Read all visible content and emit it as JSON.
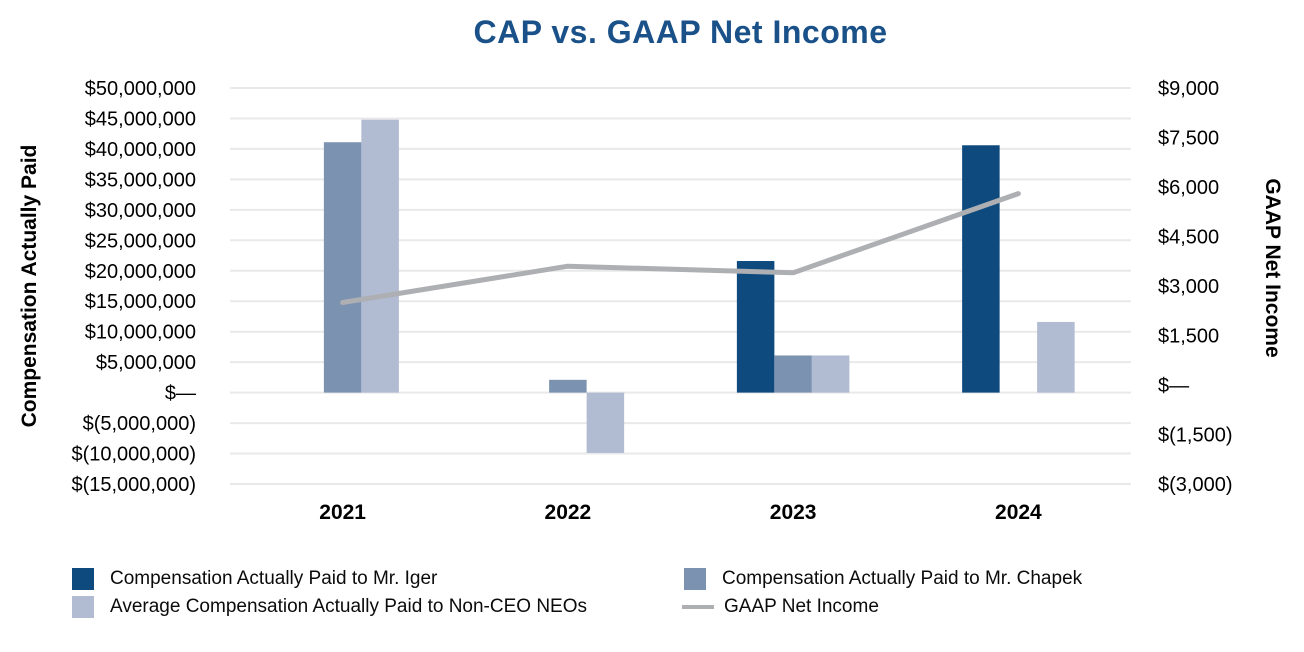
{
  "title": {
    "text": "CAP vs. GAAP Net Income",
    "color": "#1a5189"
  },
  "chart_data": {
    "type": "combo-bar-line",
    "title": "CAP vs. GAAP Net Income",
    "categories": [
      "2021",
      "2022",
      "2023",
      "2024"
    ],
    "grid": true,
    "legend_position": "bottom",
    "left_axis": {
      "title": "Compensation Actually Paid",
      "min": -15000000,
      "max": 50000000,
      "step": 5000000,
      "tick_labels": [
        "$50,000,000",
        "$45,000,000",
        "$40,000,000",
        "$35,000,000",
        "$30,000,000",
        "$25,000,000",
        "$20,000,000",
        "$15,000,000",
        "$10,000,000",
        "$5,000,000",
        "$—",
        "$(5,000,000)",
        "$(10,000,000)",
        "$(15,000,000)"
      ]
    },
    "right_axis": {
      "title": "GAAP Net Income",
      "min": -3000,
      "max": 9000,
      "step": 1500,
      "tick_labels": [
        "$9,000",
        "$7,500",
        "$6,000",
        "$4,500",
        "$3,000",
        "$1,500",
        "$—",
        "$(1,500)",
        "$(3,000)"
      ]
    },
    "series": [
      {
        "key": "iger",
        "name": "Compensation Actually Paid to Mr. Iger",
        "type": "bar",
        "axis": "left",
        "color": "#0e4a7d",
        "values": [
          null,
          null,
          21600000,
          40600000
        ]
      },
      {
        "key": "chapek",
        "name": "Compensation Actually Paid to Mr. Chapek",
        "type": "bar",
        "axis": "left",
        "color": "#7c92b1",
        "values": [
          41100000,
          2100000,
          6100000,
          null
        ]
      },
      {
        "key": "neo",
        "name": "Average Compensation Actually Paid to Non-CEO NEOs",
        "type": "bar",
        "axis": "left",
        "color": "#b1bbd2",
        "values": [
          44800000,
          -9900000,
          6100000,
          11600000
        ]
      },
      {
        "key": "gaap",
        "name": "GAAP Net Income",
        "type": "line",
        "axis": "right",
        "color": "#aeafb2",
        "values": [
          2500,
          3600,
          3400,
          5800
        ]
      }
    ],
    "colors": {
      "gridline": "#e9e9e9",
      "tick_text": "#000000",
      "x_label_text": "#000000"
    }
  }
}
